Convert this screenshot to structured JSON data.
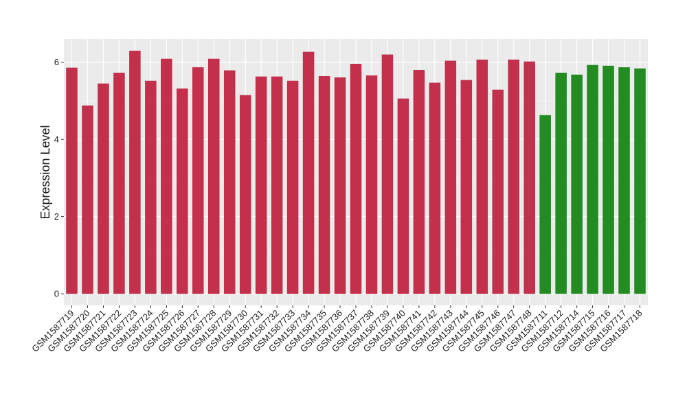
{
  "chart_data": {
    "type": "bar",
    "y_label": "Expression Level",
    "categories": [
      "GSM1587719",
      "GSM1587720",
      "GSM1587721",
      "GSM1587722",
      "GSM1587723",
      "GSM1587724",
      "GSM1587725",
      "GSM1587726",
      "GSM1587727",
      "GSM1587728",
      "GSM1587729",
      "GSM1587730",
      "GSM1587731",
      "GSM1587732",
      "GSM1587733",
      "GSM1587734",
      "GSM1587735",
      "GSM1587736",
      "GSM1587737",
      "GSM1587738",
      "GSM1587739",
      "GSM1587740",
      "GSM1587741",
      "GSM1587742",
      "GSM1587743",
      "GSM1587744",
      "GSM1587745",
      "GSM1587746",
      "GSM1587747",
      "GSM1587748",
      "GSM1587711",
      "GSM1587712",
      "GSM1587714",
      "GSM1587715",
      "GSM1587716",
      "GSM1587717",
      "GSM1587718"
    ],
    "series": [
      {
        "color": "#c2304b",
        "values": [
          5.86,
          4.88,
          5.45,
          5.73,
          6.3,
          5.52,
          6.09,
          5.32,
          5.87,
          6.09,
          5.79,
          5.15,
          5.63,
          5.63,
          5.52,
          6.27,
          5.64,
          5.61,
          5.96,
          5.66,
          6.2,
          5.06,
          5.8,
          5.47,
          6.04,
          5.54,
          6.07,
          5.29,
          6.07,
          6.02,
          null,
          null,
          null,
          null,
          null,
          null,
          null
        ]
      },
      {
        "color": "#228b22",
        "values": [
          null,
          null,
          null,
          null,
          null,
          null,
          null,
          null,
          null,
          null,
          null,
          null,
          null,
          null,
          null,
          null,
          null,
          null,
          null,
          null,
          null,
          null,
          null,
          null,
          null,
          null,
          null,
          null,
          null,
          null,
          4.63,
          5.73,
          5.68,
          5.93,
          5.91,
          5.87,
          5.84
        ]
      }
    ],
    "ylim": [
      -0.3,
      6.6
    ],
    "yticks": [
      0,
      2,
      4,
      6
    ],
    "grid": true
  }
}
